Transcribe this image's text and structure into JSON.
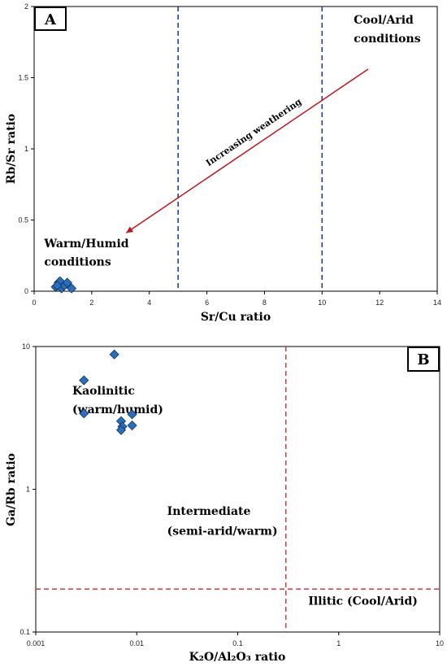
{
  "chart_data": [
    {
      "panel": "A",
      "type": "scatter",
      "xlabel": "Sr/Cu ratio",
      "ylabel": "Rb/Sr ratio",
      "xlim": [
        0,
        14
      ],
      "ylim": [
        0,
        2
      ],
      "xticks": [
        0,
        2,
        4,
        6,
        8,
        10,
        12,
        14
      ],
      "yticks": [
        0,
        0.5,
        1,
        1.5,
        2
      ],
      "reference_lines": [
        {
          "axis": "x",
          "value": 5,
          "color": "#1f3f8f",
          "style": "dashed"
        },
        {
          "axis": "x",
          "value": 10,
          "color": "#1f3f8f",
          "style": "dashed"
        }
      ],
      "arrow": {
        "from": [
          11.6,
          1.56
        ],
        "to": [
          3.2,
          0.41
        ],
        "color": "#c0161c",
        "label": "Increasing weathering"
      },
      "annotations": [
        {
          "text": "Cool/Arid",
          "x": 11.1,
          "y": 1.88
        },
        {
          "text": "conditions",
          "x": 11.1,
          "y": 1.75
        },
        {
          "text": "Warm/Humid",
          "x": 0.35,
          "y": 0.31
        },
        {
          "text": "conditions",
          "x": 0.35,
          "y": 0.18
        }
      ],
      "series": [
        {
          "marker_color": "#2a6fbb",
          "points": [
            {
              "x": 0.75,
              "y": 0.03
            },
            {
              "x": 0.85,
              "y": 0.06
            },
            {
              "x": 0.9,
              "y": 0.07
            },
            {
              "x": 0.95,
              "y": 0.02
            },
            {
              "x": 1.05,
              "y": 0.04
            },
            {
              "x": 1.15,
              "y": 0.06
            },
            {
              "x": 1.3,
              "y": 0.02
            },
            {
              "x": 0.8,
              "y": 0.04
            }
          ]
        }
      ],
      "grid": false
    },
    {
      "panel": "B",
      "type": "scatter",
      "xlabel": "K₂O/Al₂O₃ ratio",
      "ylabel": "Ga/Rb ratio",
      "xscale": "log",
      "yscale": "log",
      "xlim": [
        0.001,
        10
      ],
      "ylim": [
        0.1,
        10
      ],
      "xticks": [
        0.001,
        0.01,
        0.1,
        1,
        10
      ],
      "xtick_labels": [
        "0.001",
        "0.01",
        "0.1",
        "1",
        "10"
      ],
      "yticks": [
        0.1,
        1,
        10
      ],
      "ytick_labels": [
        "0.1",
        "1",
        "10"
      ],
      "reference_lines": [
        {
          "axis": "x",
          "value": 0.3,
          "color": "#d42b2b",
          "style": "dashed"
        },
        {
          "axis": "y",
          "value": 0.2,
          "color": "#d42b2b",
          "style": "dashed"
        }
      ],
      "annotations": [
        {
          "text": "Kaolinitic",
          "x": 0.0023,
          "y": 4.6
        },
        {
          "text": "(warm/humid)",
          "x": 0.0023,
          "y": 3.4
        },
        {
          "text": "Intermediate",
          "x": 0.02,
          "y": 0.66
        },
        {
          "text": "(semi-arid/warm)",
          "x": 0.02,
          "y": 0.48
        },
        {
          "text": "Illitic (Cool/Arid)",
          "x": 0.5,
          "y": 0.155
        }
      ],
      "series": [
        {
          "marker_color": "#2a6fbb",
          "points": [
            {
              "x": 0.006,
              "y": 8.8
            },
            {
              "x": 0.003,
              "y": 5.8
            },
            {
              "x": 0.003,
              "y": 3.4
            },
            {
              "x": 0.009,
              "y": 3.35
            },
            {
              "x": 0.007,
              "y": 3.0
            },
            {
              "x": 0.0072,
              "y": 2.75
            },
            {
              "x": 0.009,
              "y": 2.8
            },
            {
              "x": 0.007,
              "y": 2.6
            }
          ]
        }
      ],
      "grid": false
    }
  ]
}
